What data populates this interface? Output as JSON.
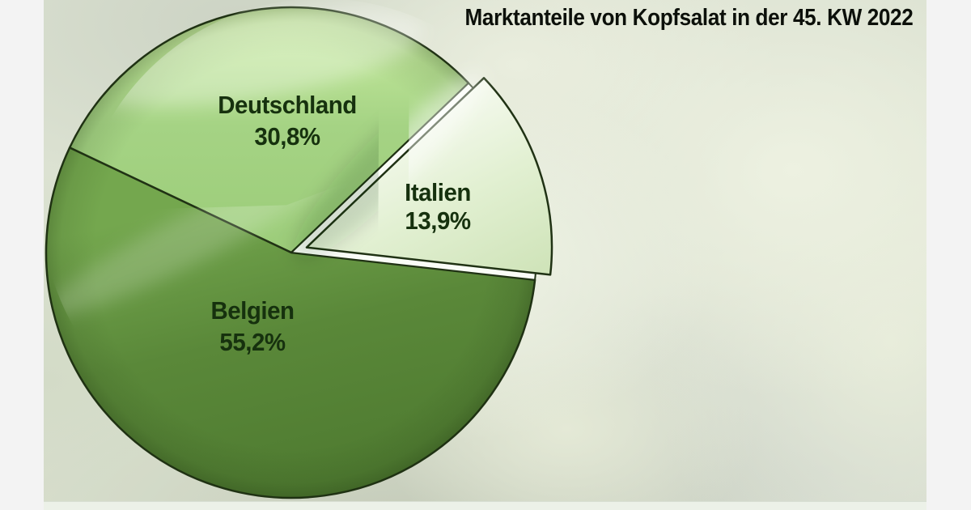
{
  "title": "Marktanteile von Kopfsalat in der 45. KW 2022",
  "chart_data": {
    "type": "pie",
    "title": "Marktanteile von Kopfsalat in der 45. KW 2022",
    "unit": "%",
    "decimal_style": "comma",
    "legend": "labels-on-slices",
    "start_angle_deg": -6.4,
    "direction": "ccw",
    "slices": [
      {
        "label": "Italien",
        "value": 13.9,
        "display_value": "13,9%",
        "exploded": true,
        "colors": {
          "light": "#f6faf0",
          "base": "#e2f0d2",
          "dark": "#cde2b6"
        }
      },
      {
        "label": "Deutschland",
        "value": 30.8,
        "display_value": "30,8%",
        "exploded": false,
        "colors": {
          "light": "#cdefa4",
          "base": "#a5d384",
          "dark": "#9acb77"
        }
      },
      {
        "label": "Belgien",
        "value": 55.2,
        "display_value": "55,2%",
        "exploded": false,
        "colors": {
          "light": "#74a74e",
          "base": "#5a8839",
          "dark": "#4e7a30"
        }
      }
    ]
  },
  "colors": {
    "outline": "#203214",
    "label_text": "#16310e",
    "title_text": "#0c100a",
    "gap_fill": "#fafdf7",
    "side_strip": "#f3f3f3",
    "bottom_strip": "#ecf1e8",
    "photo_base": "#dce2d2"
  }
}
